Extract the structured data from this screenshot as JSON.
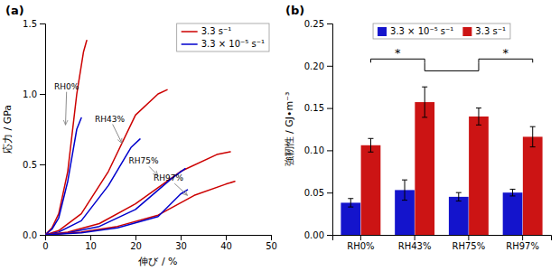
{
  "chart_data": [
    {
      "type": "line",
      "title": "(a)",
      "x_label": "伸び / %",
      "y_label": "応力 / GPa",
      "xlim": [
        0,
        50
      ],
      "ylim": [
        0,
        1.5
      ],
      "xticks": [
        0,
        10,
        20,
        30,
        40,
        50
      ],
      "yticks": [
        {
          "value": 0,
          "label": "0.0"
        },
        0.5,
        {
          "value": 1.0,
          "label": "1.0"
        },
        1.5
      ],
      "legend": "upper right",
      "series": [
        {
          "name": "3.3 s⁻¹",
          "color": "#cc0000",
          "x": [
            0,
            1.5,
            3,
            5,
            7,
            8.5,
            9.2
          ],
          "values": [
            0,
            0.05,
            0.15,
            0.45,
            1.0,
            1.3,
            1.38
          ]
        },
        {
          "name": "3.3 × 10⁻⁵ s⁻¹",
          "color": "#0000cc",
          "x": [
            0,
            1.5,
            3,
            5,
            7,
            8
          ],
          "values": [
            0,
            0.04,
            0.12,
            0.38,
            0.75,
            0.83
          ]
        },
        {
          "name": "3.3 s⁻¹",
          "color": "#cc0000",
          "x": [
            0,
            3,
            8,
            14,
            20,
            25,
            27
          ],
          "values": [
            0,
            0.03,
            0.15,
            0.45,
            0.85,
            1.0,
            1.03
          ]
        },
        {
          "name": "3.3 × 10⁻⁵ s⁻¹",
          "color": "#0000cc",
          "x": [
            0,
            3,
            8,
            14,
            19,
            21
          ],
          "values": [
            0,
            0.02,
            0.1,
            0.35,
            0.62,
            0.68
          ]
        },
        {
          "name": "3.3 s⁻¹",
          "color": "#cc0000",
          "x": [
            0,
            5,
            12,
            20,
            30,
            38,
            41
          ],
          "values": [
            0,
            0.02,
            0.08,
            0.22,
            0.45,
            0.57,
            0.59
          ]
        },
        {
          "name": "3.3 × 10⁻⁵ s⁻¹",
          "color": "#0000cc",
          "x": [
            0,
            5,
            12,
            20,
            28,
            31
          ],
          "values": [
            0,
            0.015,
            0.06,
            0.18,
            0.4,
            0.47
          ]
        },
        {
          "name": "3.3 s⁻¹",
          "color": "#cc0000",
          "x": [
            0,
            8,
            16,
            25,
            33,
            40,
            42
          ],
          "values": [
            0,
            0.02,
            0.06,
            0.14,
            0.28,
            0.36,
            0.38
          ]
        },
        {
          "name": "3.3 × 10⁻⁵ s⁻¹",
          "color": "#0000cc",
          "x": [
            0,
            8,
            16,
            25,
            30,
            31.5
          ],
          "values": [
            0,
            0.015,
            0.05,
            0.13,
            0.29,
            0.32
          ]
        }
      ],
      "annotations": [
        {
          "text": "RH0%",
          "xy": [
            4.5,
            0.78
          ],
          "xytext": [
            2.0,
            1.05
          ]
        },
        {
          "text": "RH43%",
          "xy": [
            17,
            0.65
          ],
          "xytext": [
            11,
            0.82
          ]
        },
        {
          "text": "RH75%",
          "xy": [
            25,
            0.42
          ],
          "xytext": [
            18.5,
            0.52
          ]
        },
        {
          "text": "RH97%",
          "xy": [
            31.5,
            0.28
          ],
          "xytext": [
            24,
            0.4
          ]
        }
      ]
    },
    {
      "type": "bar",
      "title": "(b)",
      "y_label": "強靭性 / GJ•m⁻³",
      "ylim": [
        0,
        0.25
      ],
      "yticks": [
        {
          "value": 0,
          "label": "0.00"
        },
        0.05,
        {
          "value": 0.1,
          "label": "0.10"
        },
        0.15,
        {
          "value": 0.2,
          "label": "0.20"
        },
        0.25
      ],
      "categories": [
        "RH0%",
        "RH43%",
        "RH75%",
        "RH97%"
      ],
      "legend": "upper center",
      "series": [
        {
          "name": "3.3 × 10⁻⁵ s⁻¹",
          "color": "#1414cc",
          "values": [
            0.038,
            0.053,
            0.045,
            0.05
          ],
          "errors": [
            0.005,
            0.012,
            0.005,
            0.004
          ]
        },
        {
          "name": "3.3 s⁻¹",
          "color": "#cc1414",
          "values": [
            0.106,
            0.157,
            0.14,
            0.116
          ],
          "errors": [
            0.008,
            0.018,
            0.01,
            0.012
          ]
        }
      ],
      "annotations": [
        {
          "text": "*",
          "categories": [
            "RH0%",
            "RH43%"
          ],
          "y": 0.208
        },
        {
          "text": "*",
          "categories": [
            "RH75%",
            "RH97%"
          ],
          "y": 0.208
        }
      ],
      "connector": {
        "categories": [
          "RH43%",
          "RH75%"
        ],
        "y": 0.194
      }
    }
  ]
}
